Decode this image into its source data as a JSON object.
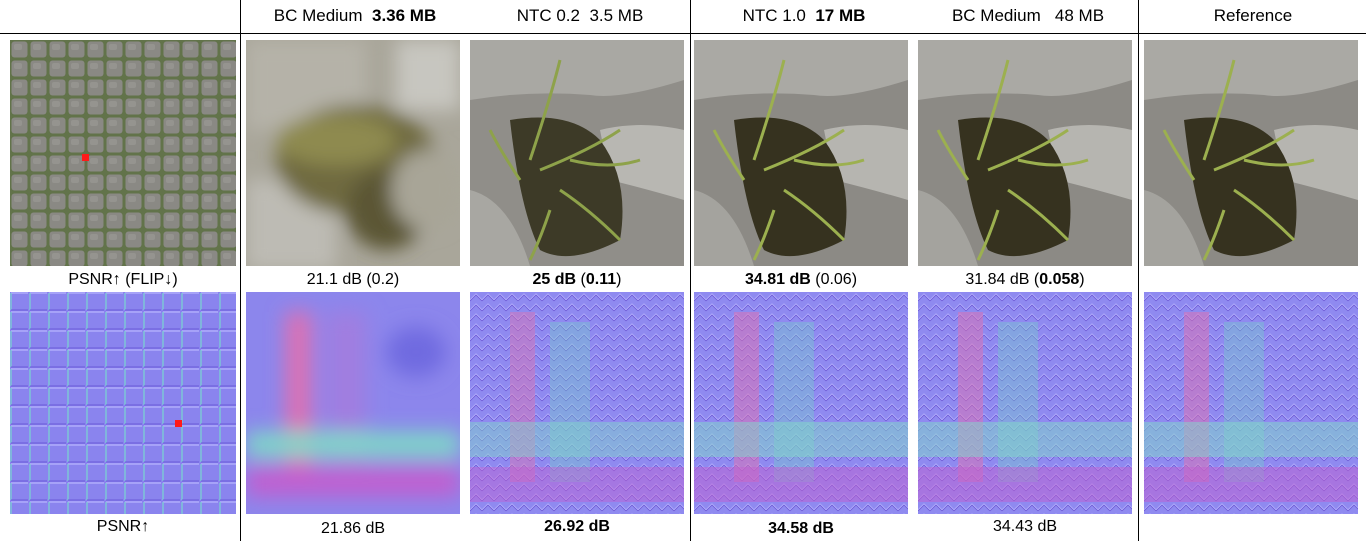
{
  "columns": [
    {
      "name": "BC Medium",
      "size": "3.36 MB",
      "size_bold": true
    },
    {
      "name": "NTC 0.2",
      "size": "3.5 MB",
      "size_bold": false
    },
    {
      "name": "NTC 1.0",
      "size": "17 MB",
      "size_bold": true
    },
    {
      "name": "BC Medium",
      "size": "48 MB",
      "size_bold": false
    },
    {
      "name": "Reference",
      "size": "",
      "size_bold": false
    }
  ],
  "rows": [
    {
      "label": "PSNR↑ (FLIP↓)",
      "captions": [
        {
          "psnr": "21.1 dB",
          "flip": "0.2",
          "psnr_bold": false,
          "flip_bold": false
        },
        {
          "psnr": "25 dB",
          "flip": "0.11",
          "psnr_bold": true,
          "flip_bold": true
        },
        {
          "psnr": "34.81 dB",
          "flip": "0.06",
          "psnr_bold": true,
          "flip_bold": false
        },
        {
          "psnr": "31.84 dB",
          "flip": "0.058",
          "psnr_bold": false,
          "flip_bold": true
        }
      ]
    },
    {
      "label": "PSNR↑",
      "captions": [
        {
          "psnr": "21.86 dB",
          "psnr_bold": false
        },
        {
          "psnr": "26.92 dB",
          "psnr_bold": true
        },
        {
          "psnr": "34.58 dB",
          "psnr_bold": true
        },
        {
          "psnr": "34.43 dB",
          "psnr_bold": false
        }
      ]
    }
  ],
  "colors": {
    "marker": "#ff1a1a",
    "stone": "#8a8a8a",
    "grass": "#6f7f3a",
    "normal_base": "#8a84ee"
  }
}
